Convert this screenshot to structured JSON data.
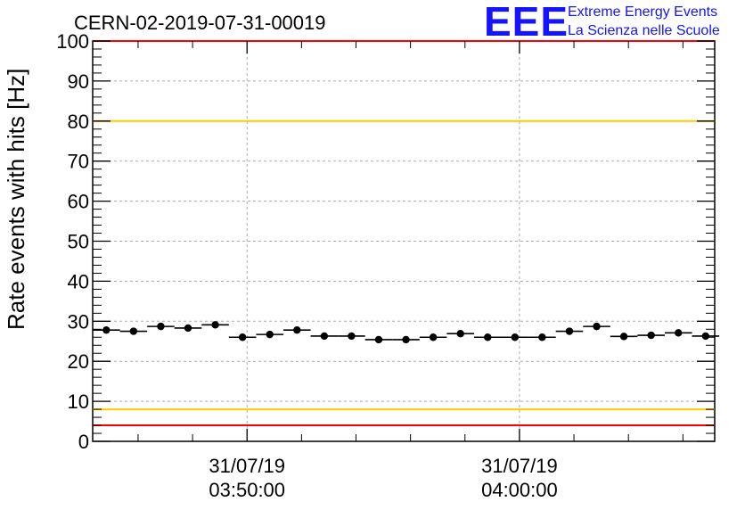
{
  "chart_data": {
    "type": "scatter",
    "title": "CERN-02-2019-07-31-00019",
    "xlabel": "",
    "ylabel": "Rate events with hits [Hz]",
    "ylim": [
      0,
      100
    ],
    "yticks": [
      0,
      10,
      20,
      30,
      40,
      50,
      60,
      70,
      80,
      90,
      100
    ],
    "xlim": [
      "31/07/19 03:44:20",
      "31/07/19 04:07:10"
    ],
    "xtick_labels": [
      {
        "date": "31/07/19",
        "time": "03:50:00",
        "x": "31/07/19 03:50:00"
      },
      {
        "date": "31/07/19",
        "time": "04:00:00",
        "x": "31/07/19 04:00:00"
      }
    ],
    "grid": true,
    "reference_lines": [
      {
        "y": 100,
        "color": "#ff0000"
      },
      {
        "y": 80,
        "color": "#ffcc00"
      },
      {
        "y": 8,
        "color": "#ffcc00"
      },
      {
        "y": 4,
        "color": "#ff0000"
      }
    ],
    "series": [
      {
        "marker_color": "#000000",
        "x": [
          "03:44:50",
          "03:45:50",
          "03:46:50",
          "03:47:50",
          "03:48:50",
          "03:49:50",
          "03:50:50",
          "03:51:50",
          "03:52:50",
          "03:53:50",
          "03:54:50",
          "03:55:50",
          "03:56:50",
          "03:57:50",
          "03:58:50",
          "03:59:50",
          "04:00:50",
          "04:01:50",
          "04:02:50",
          "04:03:50",
          "04:04:50",
          "04:05:50",
          "04:06:50"
        ],
        "values": [
          27.8,
          27.5,
          28.7,
          28.3,
          29.1,
          26.0,
          26.7,
          27.8,
          26.3,
          26.3,
          25.4,
          25.4,
          26.0,
          26.9,
          26.0,
          26.0,
          26.0,
          27.5,
          28.7,
          26.2,
          26.5,
          27.1,
          26.3
        ]
      }
    ]
  },
  "logo": {
    "mark": "EEE",
    "line1": "Extreme Energy Events",
    "line2": "La Scienza nelle Scuole",
    "color": "#1414ff"
  }
}
